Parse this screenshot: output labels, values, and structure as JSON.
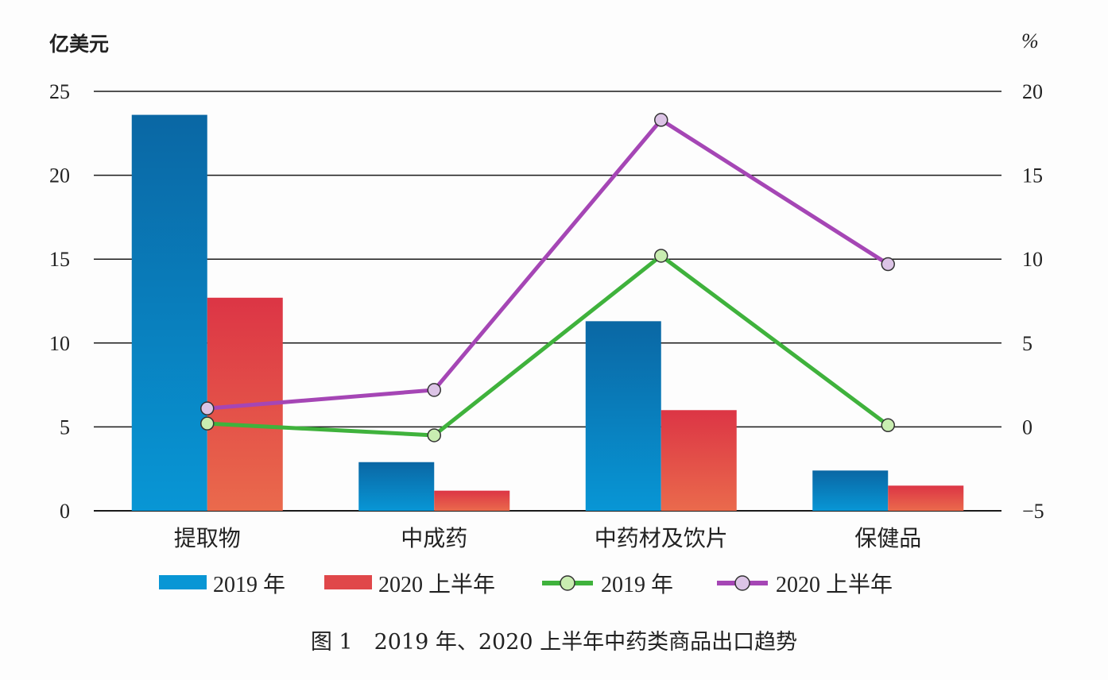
{
  "chart_data": {
    "type": "bar",
    "title": "图 1　2019 年、2020 上半年中药类商品出口趋势",
    "ylabel_left": "亿美元",
    "ylabel_right": "%",
    "categories": [
      "提取物",
      "中成药",
      "中药材及饮片",
      "保健品"
    ],
    "ylim_left": [
      0,
      25
    ],
    "yticks_left": [
      0,
      5,
      10,
      15,
      20,
      25
    ],
    "ylim_right": [
      -5,
      20
    ],
    "yticks_right": [
      -5,
      0,
      5,
      10,
      15,
      20
    ],
    "grid": true,
    "legend_position": "bottom",
    "series": [
      {
        "name": "2019 年",
        "kind": "bar",
        "axis": "left",
        "values": [
          23.6,
          2.9,
          11.3,
          2.4
        ],
        "color": "#0e7fbf"
      },
      {
        "name": "2020 上半年",
        "kind": "bar",
        "axis": "left",
        "values": [
          12.7,
          1.2,
          6.0,
          1.5
        ],
        "color": "#e0474a"
      },
      {
        "name": "2019 年",
        "kind": "line",
        "axis": "right",
        "values": [
          0.2,
          -0.5,
          10.2,
          0.1
        ],
        "color": "#3fb23c",
        "marker_fill": "#c9edb1"
      },
      {
        "name": "2020 上半年",
        "kind": "line",
        "axis": "right",
        "values": [
          1.1,
          2.2,
          18.3,
          9.7
        ],
        "color": "#a546b5",
        "marker_fill": "#dcc4e6"
      }
    ]
  }
}
